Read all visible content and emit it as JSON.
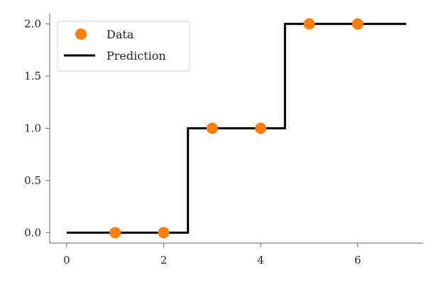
{
  "chart_data": {
    "type": "scatter",
    "title": "",
    "xlabel": "",
    "ylabel": "",
    "xlim": [
      -0.35,
      7.35
    ],
    "ylim": [
      -0.1,
      2.1
    ],
    "xticks": [
      0,
      2,
      4,
      6
    ],
    "xtick_labels": [
      "0",
      "2",
      "4",
      "6"
    ],
    "yticks": [
      0.0,
      0.5,
      1.0,
      1.5,
      2.0
    ],
    "ytick_labels": [
      "0.0",
      "0.5",
      "1.0",
      "1.5",
      "2.0"
    ],
    "grid": false,
    "legend_position": "top-left",
    "series": [
      {
        "name": "Data",
        "kind": "scatter",
        "color": "#ff7f0e",
        "points": [
          [
            1,
            0
          ],
          [
            2,
            0
          ],
          [
            3,
            1
          ],
          [
            4,
            1
          ],
          [
            5,
            2
          ],
          [
            6,
            2
          ]
        ]
      },
      {
        "name": "Prediction",
        "kind": "step-line",
        "color": "#000000",
        "points": [
          [
            0,
            0
          ],
          [
            2.5,
            0
          ],
          [
            2.5,
            1
          ],
          [
            4.5,
            1
          ],
          [
            4.5,
            2
          ],
          [
            7,
            2
          ]
        ]
      }
    ]
  }
}
